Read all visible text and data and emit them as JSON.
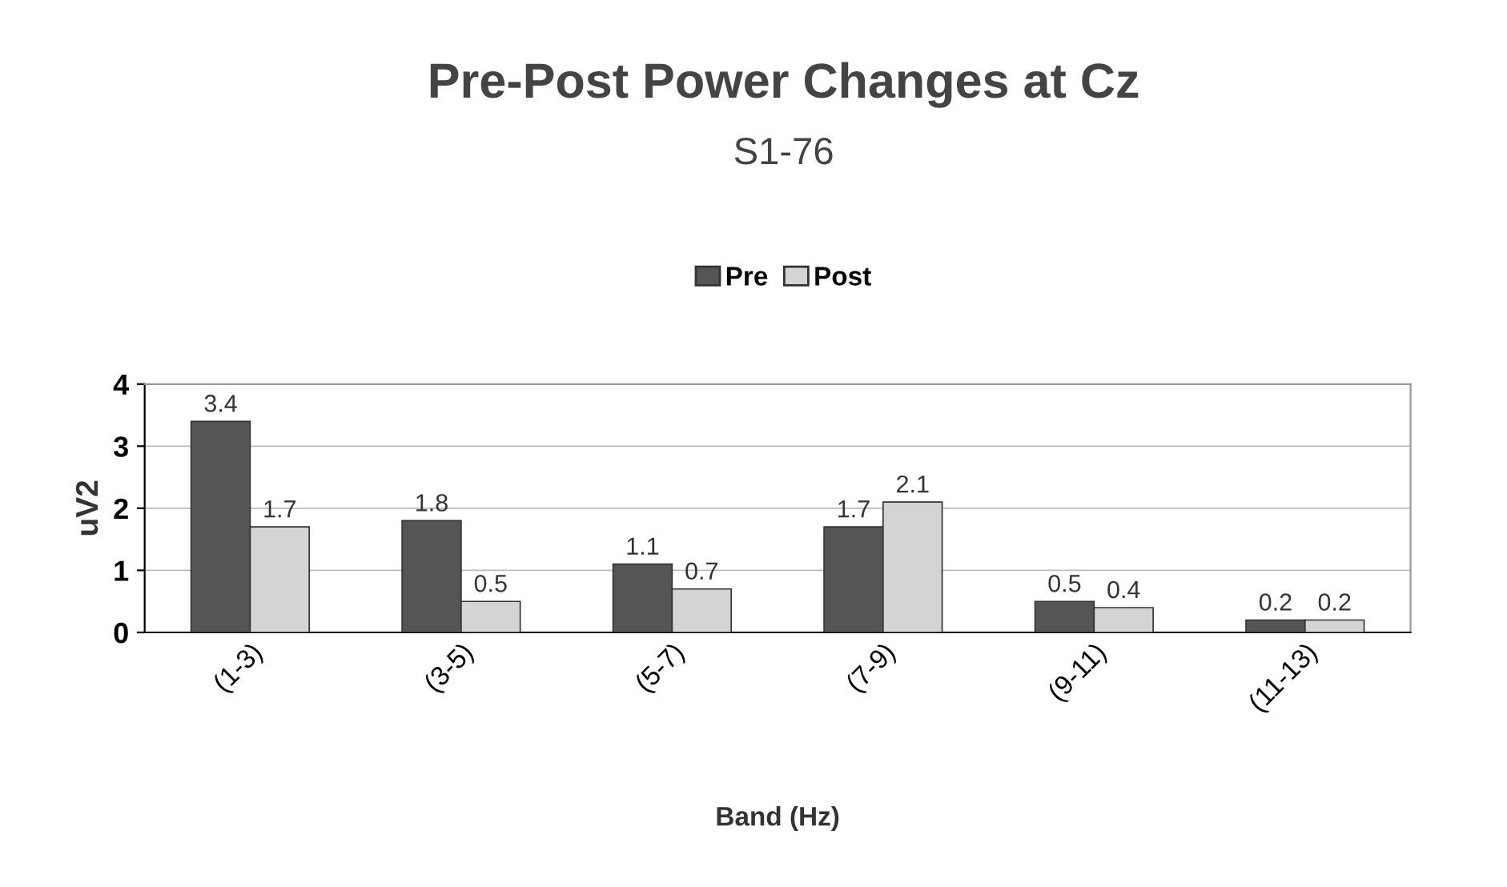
{
  "chart_data": {
    "type": "bar",
    "title": "Pre-Post Power Changes at Cz",
    "subtitle": "S1-76",
    "xlabel": "Band (Hz)",
    "ylabel": "uV2",
    "categories": [
      "(1-3)",
      "(3-5)",
      "(5-7)",
      "(7-9)",
      "(9-11)",
      "(11-13)"
    ],
    "series": [
      {
        "name": "Pre",
        "color": "#555555",
        "values": [
          3.4,
          1.8,
          1.1,
          1.7,
          0.5,
          0.2
        ]
      },
      {
        "name": "Post",
        "color": "#d4d4d4",
        "values": [
          1.7,
          0.5,
          0.7,
          2.1,
          0.4,
          0.2
        ]
      }
    ],
    "ylim": [
      0,
      4
    ],
    "yticks": [
      0,
      1,
      2,
      3,
      4
    ],
    "grid": "y",
    "legend": "top",
    "data_labels": true
  }
}
